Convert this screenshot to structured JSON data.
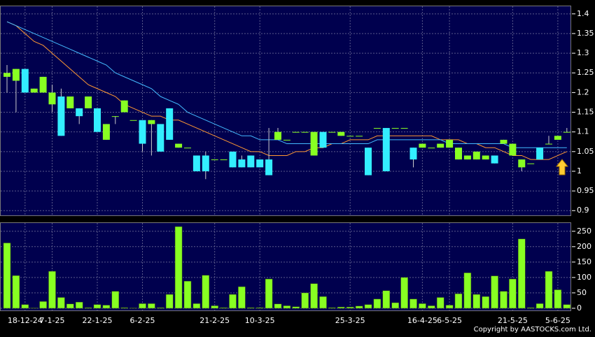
{
  "chart_data": [
    {
      "type": "candlestick",
      "up_color": "#33eeff",
      "down_color": "#88ff22",
      "grid": true,
      "ylim": [
        0.888,
        1.421
      ],
      "yticks": [
        1.4,
        1.35,
        1.3,
        1.25,
        1.2,
        1.15,
        1.1,
        1.05,
        1,
        0.95,
        0.9
      ],
      "open": [
        1.25,
        1.26,
        1.2,
        1.21,
        1.24,
        1.2,
        1.09,
        1.19,
        1.14,
        1.19,
        1.1,
        1.12,
        1.14,
        1.18,
        1.13,
        1.07,
        1.13,
        1.05,
        1.08,
        1.07,
        1.06,
        1.0,
        1.0,
        1.03,
        1.03,
        1.01,
        1.01,
        1.01,
        1.01,
        0.99,
        1.1,
        1.08,
        1.1,
        1.1,
        1.1,
        1.06,
        1.1,
        1.1,
        1.09,
        1.09,
        0.99,
        1.11,
        1.0,
        1.11,
        1.11,
        1.03,
        1.07,
        1.06,
        1.07,
        1.08,
        1.06,
        1.04,
        1.05,
        1.04,
        1.02,
        1.08,
        1.07,
        1.03,
        1.02,
        1.03,
        1.07,
        1.09,
        1.1
      ],
      "high": [
        1.27,
        1.26,
        1.26,
        1.21,
        1.24,
        1.22,
        1.21,
        1.19,
        1.16,
        1.19,
        1.16,
        1.12,
        1.14,
        1.18,
        1.13,
        1.13,
        1.13,
        1.12,
        1.16,
        1.07,
        1.06,
        1.04,
        1.05,
        1.03,
        1.03,
        1.05,
        1.04,
        1.04,
        1.03,
        1.11,
        1.11,
        1.08,
        1.1,
        1.1,
        1.1,
        1.1,
        1.1,
        1.1,
        1.09,
        1.09,
        1.06,
        1.11,
        1.11,
        1.11,
        1.11,
        1.06,
        1.07,
        1.06,
        1.07,
        1.08,
        1.06,
        1.04,
        1.05,
        1.04,
        1.04,
        1.08,
        1.07,
        1.03,
        1.02,
        1.06,
        1.09,
        1.09,
        1.11
      ],
      "low": [
        1.2,
        1.15,
        1.2,
        1.2,
        1.2,
        1.15,
        1.09,
        1.16,
        1.12,
        1.16,
        1.1,
        1.08,
        1.12,
        1.15,
        1.13,
        1.05,
        1.04,
        1.05,
        1.08,
        1.06,
        1.06,
        1.0,
        0.98,
        1.03,
        1.03,
        1.01,
        1.01,
        1.01,
        1.01,
        0.99,
        1.08,
        1.08,
        1.1,
        1.1,
        1.04,
        1.06,
        1.1,
        1.09,
        1.09,
        1.09,
        0.99,
        1.11,
        1.0,
        1.11,
        1.11,
        1.01,
        1.06,
        1.06,
        1.06,
        1.06,
        1.03,
        1.03,
        1.03,
        1.03,
        1.02,
        1.07,
        1.04,
        1.0,
        1.02,
        1.03,
        1.07,
        1.08,
        1.1
      ],
      "close": [
        1.24,
        1.23,
        1.26,
        1.2,
        1.2,
        1.17,
        1.19,
        1.16,
        1.16,
        1.16,
        1.16,
        1.08,
        1.14,
        1.15,
        1.13,
        1.13,
        1.12,
        1.12,
        1.16,
        1.06,
        1.06,
        1.04,
        1.04,
        1.03,
        1.03,
        1.05,
        1.03,
        1.04,
        1.03,
        1.03,
        1.08,
        1.08,
        1.1,
        1.1,
        1.04,
        1.1,
        1.1,
        1.09,
        1.09,
        1.09,
        1.06,
        1.11,
        1.11,
        1.11,
        1.11,
        1.06,
        1.06,
        1.06,
        1.06,
        1.06,
        1.03,
        1.03,
        1.03,
        1.03,
        1.04,
        1.07,
        1.04,
        1.01,
        1.02,
        1.06,
        1.07,
        1.08,
        1.1
      ],
      "lines": [
        {
          "color": "#ff9933",
          "values": [
            1.38,
            1.37,
            1.35,
            1.33,
            1.32,
            1.3,
            1.28,
            1.26,
            1.24,
            1.22,
            1.21,
            1.2,
            1.19,
            1.17,
            1.16,
            1.15,
            1.14,
            1.14,
            1.13,
            1.13,
            1.12,
            1.11,
            1.1,
            1.09,
            1.08,
            1.07,
            1.06,
            1.05,
            1.05,
            1.04,
            1.04,
            1.04,
            1.05,
            1.05,
            1.06,
            1.06,
            1.07,
            1.07,
            1.08,
            1.08,
            1.08,
            1.09,
            1.09,
            1.09,
            1.09,
            1.09,
            1.09,
            1.09,
            1.08,
            1.08,
            1.08,
            1.07,
            1.07,
            1.06,
            1.06,
            1.05,
            1.04,
            1.04,
            1.03,
            1.03,
            1.03,
            1.04,
            1.05
          ]
        },
        {
          "color": "#44bbff",
          "values": [
            1.38,
            1.37,
            1.36,
            1.35,
            1.34,
            1.33,
            1.32,
            1.31,
            1.3,
            1.29,
            1.28,
            1.27,
            1.25,
            1.24,
            1.23,
            1.22,
            1.21,
            1.19,
            1.18,
            1.17,
            1.15,
            1.14,
            1.13,
            1.12,
            1.11,
            1.1,
            1.09,
            1.09,
            1.08,
            1.08,
            1.08,
            1.07,
            1.07,
            1.07,
            1.07,
            1.07,
            1.07,
            1.07,
            1.07,
            1.07,
            1.07,
            1.08,
            1.08,
            1.08,
            1.08,
            1.08,
            1.08,
            1.08,
            1.08,
            1.07,
            1.07,
            1.07,
            1.07,
            1.07,
            1.07,
            1.07,
            1.06,
            1.06,
            1.06,
            1.06,
            1.06,
            1.06,
            1.06
          ]
        }
      ]
    },
    {
      "type": "bar",
      "color": "#88ff22",
      "grid": true,
      "ylim": [
        -7,
        279
      ],
      "yticks": [
        250,
        200,
        150,
        100,
        50,
        0
      ],
      "categories": [
        null,
        null,
        "18-12-24",
        null,
        null,
        "7-1-25",
        null,
        null,
        null,
        null,
        "22-1-25",
        null,
        null,
        null,
        null,
        "6-2-25",
        null,
        null,
        null,
        null,
        null,
        null,
        null,
        "21-2-25",
        null,
        null,
        null,
        null,
        "10-3-25",
        null,
        null,
        null,
        null,
        null,
        null,
        null,
        null,
        null,
        "25-3-25",
        null,
        null,
        null,
        null,
        null,
        null,
        null,
        "16-4-25",
        null,
        null,
        "6-5-25",
        null,
        null,
        null,
        null,
        null,
        null,
        "21-5-25",
        null,
        null,
        null,
        null,
        "5-6-25",
        null
      ],
      "values": [
        212,
        106,
        12,
        1,
        22,
        120,
        35,
        14,
        20,
        2,
        12,
        10,
        55,
        2,
        1,
        15,
        15,
        2,
        45,
        265,
        88,
        15,
        107,
        8,
        2,
        45,
        70,
        2,
        2,
        95,
        14,
        8,
        5,
        50,
        80,
        38,
        2,
        4,
        4,
        7,
        12,
        30,
        57,
        18,
        100,
        30,
        15,
        8,
        35,
        10,
        47,
        115,
        45,
        38,
        105,
        55,
        95,
        225,
        2,
        15,
        120,
        60,
        12
      ]
    }
  ],
  "footer": "Copyright by AASTOCKS.com Ltd."
}
